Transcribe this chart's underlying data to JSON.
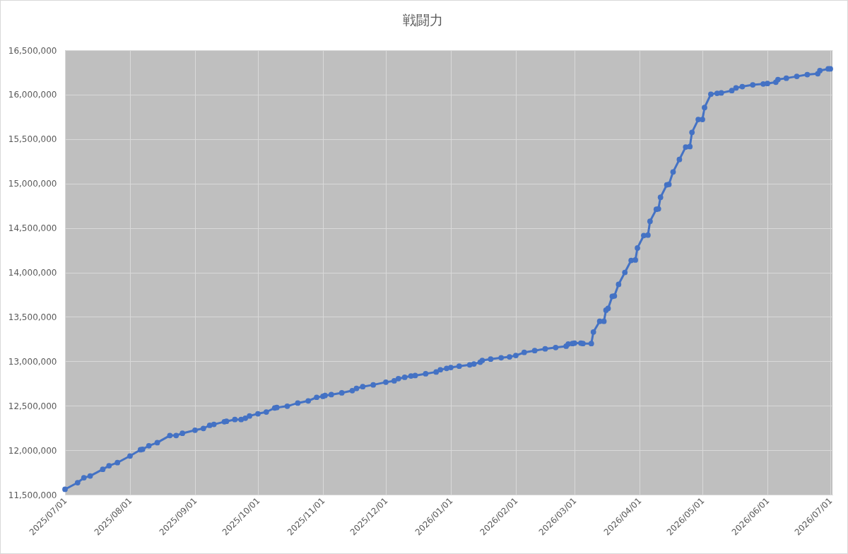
{
  "chart_data": {
    "type": "line",
    "title": "戦闘力",
    "x": [
      "2025-07-01",
      "2025-07-07",
      "2025-07-10",
      "2025-07-13",
      "2025-07-19",
      "2025-07-22",
      "2025-07-26",
      "2025-08-01",
      "2025-08-06",
      "2025-08-07",
      "2025-08-10",
      "2025-08-14",
      "2025-08-20",
      "2025-08-23",
      "2025-08-26",
      "2025-09-01",
      "2025-09-05",
      "2025-09-08",
      "2025-09-10",
      "2025-09-15",
      "2025-09-16",
      "2025-09-20",
      "2025-09-23",
      "2025-09-25",
      "2025-09-27",
      "2025-10-01",
      "2025-10-05",
      "2025-10-09",
      "2025-10-10",
      "2025-10-15",
      "2025-10-20",
      "2025-10-25",
      "2025-10-29",
      "2025-11-01",
      "2025-11-02",
      "2025-11-05",
      "2025-11-10",
      "2025-11-15",
      "2025-11-17",
      "2025-11-20",
      "2025-11-25",
      "2025-12-01",
      "2025-12-05",
      "2025-12-07",
      "2025-12-10",
      "2025-12-13",
      "2025-12-15",
      "2025-12-20",
      "2025-12-25",
      "2025-12-27",
      "2025-12-30",
      "2026-01-01",
      "2026-01-05",
      "2026-01-10",
      "2026-01-12",
      "2026-01-15",
      "2026-01-16",
      "2026-01-20",
      "2026-01-25",
      "2026-01-29",
      "2026-02-01",
      "2026-02-05",
      "2026-02-10",
      "2026-02-15",
      "2026-02-20",
      "2026-02-25",
      "2026-02-26",
      "2026-02-28",
      "2026-03-01",
      "2026-03-04",
      "2026-03-05",
      "2026-03-09",
      "2026-03-10",
      "2026-03-13",
      "2026-03-15",
      "2026-03-16",
      "2026-03-17",
      "2026-03-19",
      "2026-03-20",
      "2026-03-22",
      "2026-03-25",
      "2026-03-28",
      "2026-03-30",
      "2026-03-31",
      "2026-04-03",
      "2026-04-05",
      "2026-04-06",
      "2026-04-09",
      "2026-04-10",
      "2026-04-11",
      "2026-04-14",
      "2026-04-15",
      "2026-04-17",
      "2026-04-20",
      "2026-04-23",
      "2026-04-25",
      "2026-04-26",
      "2026-04-29",
      "2026-05-01",
      "2026-05-02",
      "2026-05-05",
      "2026-05-08",
      "2026-05-10",
      "2026-05-15",
      "2026-05-17",
      "2026-05-20",
      "2026-05-25",
      "2026-05-30",
      "2026-06-01",
      "2026-06-05",
      "2026-06-06",
      "2026-06-10",
      "2026-06-15",
      "2026-06-20",
      "2026-06-25",
      "2026-06-26",
      "2026-06-30",
      "2026-07-01"
    ],
    "values": [
      11560000,
      11635000,
      11690000,
      11710000,
      11785000,
      11825000,
      11860000,
      11935000,
      12005000,
      12010000,
      12050000,
      12085000,
      12165000,
      12165000,
      12190000,
      12225000,
      12245000,
      12280000,
      12290000,
      12320000,
      12325000,
      12345000,
      12345000,
      12360000,
      12385000,
      12410000,
      12430000,
      12475000,
      12480000,
      12495000,
      12530000,
      12555000,
      12595000,
      12605000,
      12615000,
      12625000,
      12645000,
      12670000,
      12695000,
      12715000,
      12735000,
      12765000,
      12780000,
      12805000,
      12820000,
      12835000,
      12840000,
      12860000,
      12880000,
      12905000,
      12920000,
      12930000,
      12945000,
      12960000,
      12970000,
      12990000,
      13010000,
      13025000,
      13040000,
      13050000,
      13065000,
      13100000,
      13120000,
      13140000,
      13155000,
      13170000,
      13195000,
      13200000,
      13205000,
      13205000,
      13200000,
      13200000,
      13330000,
      13450000,
      13450000,
      13575000,
      13595000,
      13730000,
      13735000,
      13865000,
      14000000,
      14135000,
      14140000,
      14275000,
      14415000,
      14420000,
      14575000,
      14710000,
      14715000,
      14845000,
      14985000,
      14990000,
      15130000,
      15270000,
      15410000,
      15415000,
      15575000,
      15720000,
      15720000,
      15855000,
      16005000,
      16015000,
      16020000,
      16045000,
      16075000,
      16090000,
      16110000,
      16120000,
      16125000,
      16140000,
      16170000,
      16185000,
      16205000,
      16225000,
      16235000,
      16270000,
      16290000,
      16290000
    ],
    "color": "#4472c4",
    "xlim": [
      "2025-07-01",
      "2026-07-02"
    ],
    "xticks": [
      {
        "value": "2025-07-01",
        "label": "2025/07/01"
      },
      {
        "value": "2025-08-01",
        "label": "2025/08/01"
      },
      {
        "value": "2025-09-01",
        "label": "2025/09/01"
      },
      {
        "value": "2025-10-01",
        "label": "2025/10/01"
      },
      {
        "value": "2025-11-01",
        "label": "2025/11/01"
      },
      {
        "value": "2025-12-01",
        "label": "2025/12/01"
      },
      {
        "value": "2026-01-01",
        "label": "2026/01/01"
      },
      {
        "value": "2026-02-01",
        "label": "2026/02/01"
      },
      {
        "value": "2026-03-01",
        "label": "2026/03/01"
      },
      {
        "value": "2026-04-01",
        "label": "2026/04/01"
      },
      {
        "value": "2026-05-01",
        "label": "2026/05/01"
      },
      {
        "value": "2026-06-01",
        "label": "2026/06/01"
      },
      {
        "value": "2026-07-01",
        "label": "2026/07/01"
      }
    ],
    "ylim": [
      11500000,
      16500000
    ],
    "yticks": [
      {
        "value": 11500000,
        "label": "11,500,000"
      },
      {
        "value": 12000000,
        "label": "12,000,000"
      },
      {
        "value": 12500000,
        "label": "12,500,000"
      },
      {
        "value": 13000000,
        "label": "13,000,000"
      },
      {
        "value": 13500000,
        "label": "13,500,000"
      },
      {
        "value": 14000000,
        "label": "14,000,000"
      },
      {
        "value": 14500000,
        "label": "14,500,000"
      },
      {
        "value": 15000000,
        "label": "15,000,000"
      },
      {
        "value": 15500000,
        "label": "15,500,000"
      },
      {
        "value": 16000000,
        "label": "16,000,000"
      },
      {
        "value": 16500000,
        "label": "16,500,000"
      }
    ],
    "grid": true,
    "marker": "circle",
    "line_style": "solid"
  }
}
